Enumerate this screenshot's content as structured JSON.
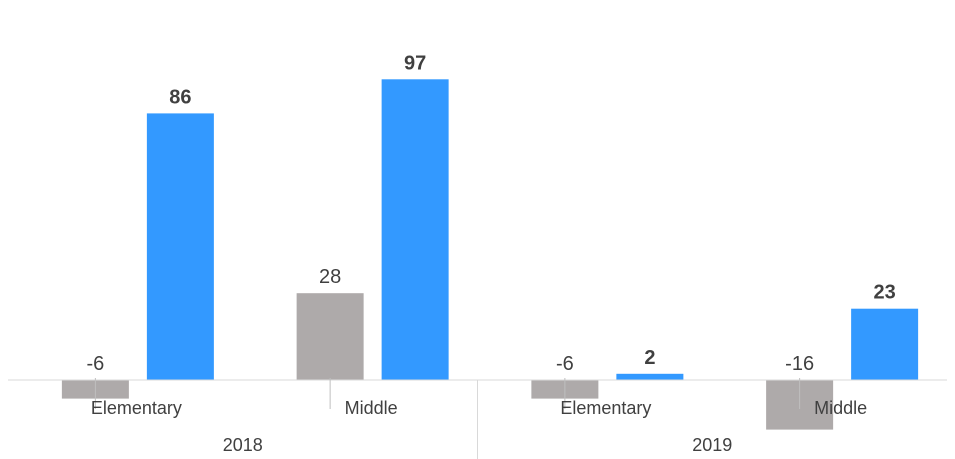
{
  "chart_data": {
    "type": "bar",
    "groups": [
      {
        "label": "2018",
        "categories": [
          "Elementary",
          "Middle"
        ]
      },
      {
        "label": "2019",
        "categories": [
          "Elementary",
          "Middle"
        ]
      }
    ],
    "series": [
      {
        "values": [
          -6,
          28,
          -6,
          -16
        ],
        "color": "#aeaaaa",
        "label_style": "regular"
      },
      {
        "values": [
          86,
          97,
          2,
          23
        ],
        "color": "#3399ff",
        "label_style": "bold"
      }
    ],
    "ylim": [
      -20,
      105
    ],
    "grid": false,
    "legend": "none"
  }
}
